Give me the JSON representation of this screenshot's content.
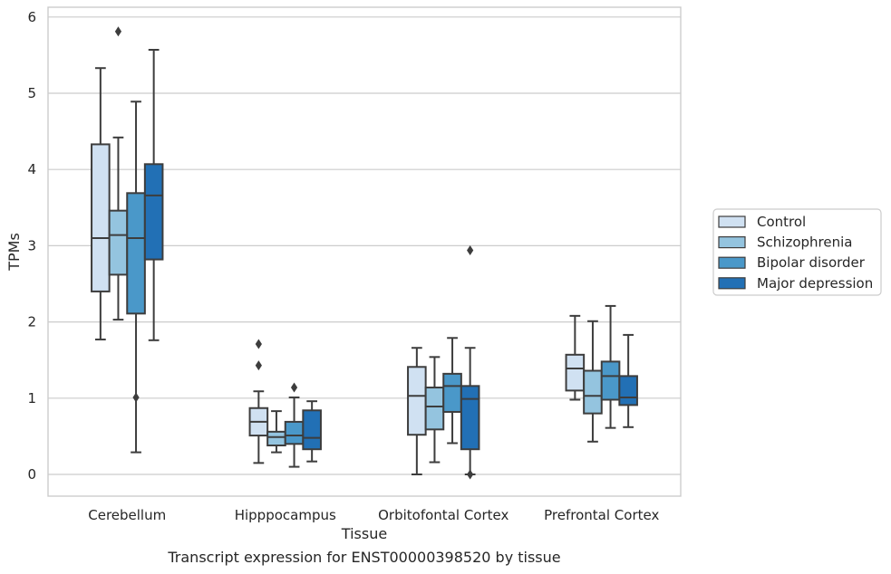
{
  "chart_data": {
    "type": "box",
    "caption": "Transcript expression for ENST00000398520 by tissue",
    "xlabel": "Tissue",
    "ylabel": "TPMs",
    "ylim": [
      -0.28,
      6.1
    ],
    "yticks": [
      0,
      1,
      2,
      3,
      4,
      5,
      6
    ],
    "grid": "horizontal",
    "legend_position": "right",
    "categories": [
      "Cerebellum",
      "Hipppocampus",
      "Orbitofontal Cortex",
      "Prefrontal Cortex"
    ],
    "series": [
      {
        "name": "Control",
        "color": "#d0e1f2",
        "boxes": [
          {
            "whislo": 1.77,
            "q1": 2.4,
            "med": 3.1,
            "q3": 4.33,
            "whishi": 5.33,
            "fliers": []
          },
          {
            "whislo": 0.15,
            "q1": 0.51,
            "med": 0.69,
            "q3": 0.87,
            "whishi": 1.09,
            "fliers": [
              1.43,
              1.71
            ]
          },
          {
            "whislo": 0.0,
            "q1": 0.52,
            "med": 1.03,
            "q3": 1.41,
            "whishi": 1.66,
            "fliers": []
          },
          {
            "whislo": 0.98,
            "q1": 1.1,
            "med": 1.39,
            "q3": 1.57,
            "whishi": 2.08,
            "fliers": []
          }
        ]
      },
      {
        "name": "Schizophrenia",
        "color": "#94c4df",
        "boxes": [
          {
            "whislo": 2.03,
            "q1": 2.62,
            "med": 3.14,
            "q3": 3.46,
            "whishi": 4.42,
            "fliers": [
              5.81
            ]
          },
          {
            "whislo": 0.29,
            "q1": 0.38,
            "med": 0.49,
            "q3": 0.56,
            "whishi": 0.83,
            "fliers": []
          },
          {
            "whislo": 0.16,
            "q1": 0.59,
            "med": 0.89,
            "q3": 1.14,
            "whishi": 1.54,
            "fliers": []
          },
          {
            "whislo": 0.43,
            "q1": 0.8,
            "med": 1.03,
            "q3": 1.36,
            "whishi": 2.01,
            "fliers": []
          }
        ]
      },
      {
        "name": "Bipolar disorder",
        "color": "#4a98c9",
        "boxes": [
          {
            "whislo": 0.29,
            "q1": 2.11,
            "med": 3.1,
            "q3": 3.69,
            "whishi": 4.89,
            "fliers": [
              1.01
            ]
          },
          {
            "whislo": 0.1,
            "q1": 0.4,
            "med": 0.51,
            "q3": 0.69,
            "whishi": 1.01,
            "fliers": [
              1.14
            ]
          },
          {
            "whislo": 0.41,
            "q1": 0.82,
            "med": 1.16,
            "q3": 1.32,
            "whishi": 1.79,
            "fliers": []
          },
          {
            "whislo": 0.61,
            "q1": 0.98,
            "med": 1.29,
            "q3": 1.48,
            "whishi": 2.21,
            "fliers": []
          }
        ]
      },
      {
        "name": "Major depression",
        "color": "#2270b5",
        "boxes": [
          {
            "whislo": 1.76,
            "q1": 2.82,
            "med": 3.66,
            "q3": 4.07,
            "whishi": 5.57,
            "fliers": []
          },
          {
            "whislo": 0.17,
            "q1": 0.33,
            "med": 0.48,
            "q3": 0.84,
            "whishi": 0.96,
            "fliers": []
          },
          {
            "whislo": 0.0,
            "q1": 0.33,
            "med": 0.99,
            "q3": 1.16,
            "whishi": 1.66,
            "fliers": [
              0.0,
              2.94
            ]
          },
          {
            "whislo": 0.62,
            "q1": 0.91,
            "med": 1.01,
            "q3": 1.29,
            "whishi": 1.83,
            "fliers": []
          }
        ]
      }
    ]
  }
}
